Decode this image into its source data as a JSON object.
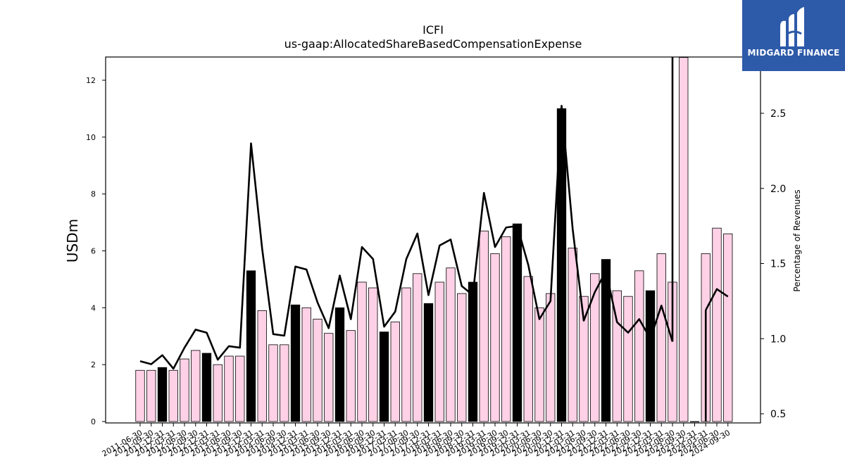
{
  "brand": {
    "name": "MIDGARD FINANCE",
    "color": "#2d5aa9"
  },
  "chart_data": {
    "type": "bar",
    "title": "ICFI",
    "subtitle": "us-gaap:AllocatedShareBasedCompensationExpense",
    "ylabel": "USDm",
    "y2label": "Percentage of Revenues",
    "ylim": [
      0,
      12.8
    ],
    "y2lim": [
      0.45,
      2.95
    ],
    "yticks": [
      "0",
      "2",
      "4",
      "6",
      "8",
      "10",
      "12"
    ],
    "y2ticks": [
      "0.5",
      "1.0",
      "1.5",
      "2.0",
      "2.5"
    ],
    "colors": {
      "quarter_bar": "#ffd1e6",
      "annual_bar": "#000000",
      "line": "#000000",
      "bar_edge": "#000000"
    },
    "categories": [
      "2011-06-30",
      "2011-09-30",
      "2011-12-31",
      "2012-03-31",
      "2012-06-30",
      "2012-09-30",
      "2012-12-31",
      "2013-03-31",
      "2013-06-30",
      "2013-09-30",
      "2013-12-31",
      "2014-03-31",
      "2014-06-30",
      "2014-09-30",
      "2014-12-31",
      "2015-03-31",
      "2015-06-30",
      "2015-09-30",
      "2015-12-31",
      "2016-03-31",
      "2016-06-30",
      "2016-09-30",
      "2016-12-31",
      "2017-03-31",
      "2017-06-30",
      "2017-09-30",
      "2017-12-31",
      "2018-03-31",
      "2018-06-30",
      "2018-09-30",
      "2018-12-31",
      "2019-03-31",
      "2019-06-30",
      "2019-09-30",
      "2019-12-31",
      "2020-03-31",
      "2020-06-30",
      "2020-09-30",
      "2020-12-31",
      "2021-03-31",
      "2021-06-30",
      "2021-09-30",
      "2021-12-31",
      "2022-03-31",
      "2022-06-30",
      "2022-09-30",
      "2022-12-31",
      "2023-03-31",
      "2023-06-30",
      "2023-09-30",
      "2023-12-31",
      "2024-03-31",
      "2024-06-30",
      "2024-09-30"
    ],
    "series": [
      {
        "kind": "bar",
        "values": [
          1.8,
          1.8,
          1.9,
          1.8,
          2.2,
          2.5,
          2.4,
          2.0,
          2.3,
          2.3,
          5.3,
          3.9,
          2.7,
          2.7,
          4.1,
          4.0,
          3.6,
          3.1,
          4.0,
          3.2,
          4.9,
          4.7,
          3.15,
          3.5,
          4.7,
          5.2,
          4.15,
          4.9,
          5.4,
          4.5,
          4.9,
          6.7,
          5.9,
          6.5,
          6.95,
          5.1,
          4.0,
          4.5,
          11.0,
          6.1,
          4.4,
          5.2,
          5.7,
          4.6,
          4.4,
          5.3,
          4.6,
          5.9,
          4.9,
          12.8,
          0,
          5.9,
          6.8,
          6.6
        ],
        "annual": [
          false,
          false,
          true,
          false,
          false,
          false,
          true,
          false,
          false,
          false,
          true,
          false,
          false,
          false,
          true,
          false,
          false,
          false,
          true,
          false,
          false,
          false,
          true,
          false,
          false,
          false,
          true,
          false,
          false,
          false,
          true,
          false,
          false,
          false,
          true,
          false,
          false,
          false,
          true,
          false,
          false,
          false,
          true,
          false,
          false,
          false,
          true,
          false,
          false,
          false,
          true,
          false,
          false,
          false
        ]
      },
      {
        "kind": "line",
        "axis": "right",
        "values": [
          0.85,
          0.83,
          0.89,
          0.8,
          0.94,
          1.06,
          1.04,
          0.86,
          0.95,
          0.94,
          2.3,
          1.6,
          1.03,
          1.02,
          1.48,
          1.46,
          1.24,
          1.07,
          1.42,
          1.13,
          1.61,
          1.53,
          1.08,
          1.18,
          1.53,
          1.7,
          1.29,
          1.62,
          1.66,
          1.35,
          1.29,
          1.97,
          1.61,
          1.74,
          1.75,
          1.49,
          1.13,
          1.25,
          2.55,
          1.73,
          1.12,
          1.31,
          1.45,
          1.11,
          1.04,
          1.13,
          1.0,
          1.22,
          0.98,
          null,
          null,
          1.19,
          1.33,
          1.28
        ]
      }
    ],
    "spike": {
      "category_index": 48,
      "top": 2.95
    }
  }
}
